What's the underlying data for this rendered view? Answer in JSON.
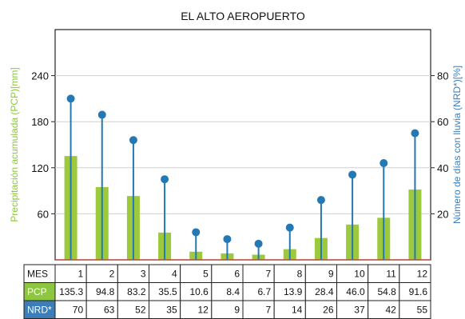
{
  "chart_data": {
    "type": "bar",
    "title": "EL ALTO AEROPUERTO",
    "ylabel_left": "Precipitación acumulada (PCP)[mm]",
    "ylabel_right": "Número de días con lluvia (NRD*)[%]",
    "left_ticks": [
      60,
      120,
      180,
      240
    ],
    "right_ticks": [
      20,
      40,
      60,
      80
    ],
    "ylim_left": [
      0,
      300
    ],
    "ylim_right": [
      0,
      100
    ],
    "grid": "horizontal",
    "colors": {
      "bar": "#9dc93c",
      "stem": "#2478b4",
      "grid": "#d0d0d0",
      "left_axis_label": "#8dc63f",
      "right_axis_label": "#3c7fb8",
      "pcp_cell": "#8dc63f",
      "nrd_cell": "#3c7fb8",
      "baseline": "#c0392b"
    },
    "series": [
      {
        "name": "PCP",
        "kind": "bar",
        "axis": "left",
        "values": [
          135.3,
          94.8,
          83.2,
          35.5,
          10.6,
          8.4,
          6.7,
          13.9,
          28.4,
          46.0,
          54.8,
          91.6
        ]
      },
      {
        "name": "NRD*",
        "kind": "lollipop",
        "axis": "right",
        "values": [
          70,
          63,
          52,
          35,
          12,
          9,
          7,
          14,
          26,
          37,
          42,
          55
        ]
      }
    ],
    "table": {
      "row_labels": [
        "MES",
        "PCP",
        "NRD*"
      ],
      "rows": [
        [
          "1",
          "2",
          "3",
          "4",
          "5",
          "6",
          "7",
          "8",
          "9",
          "10",
          "11",
          "12"
        ],
        [
          "135.3",
          "94.8",
          "83.2",
          "35.5",
          "10.6",
          "8.4",
          "6.7",
          "13.9",
          "28.4",
          "46.0",
          "54.8",
          "91.6"
        ],
        [
          "70",
          "63",
          "52",
          "35",
          "12",
          "9",
          "7",
          "14",
          "26",
          "37",
          "42",
          "55"
        ]
      ]
    }
  }
}
